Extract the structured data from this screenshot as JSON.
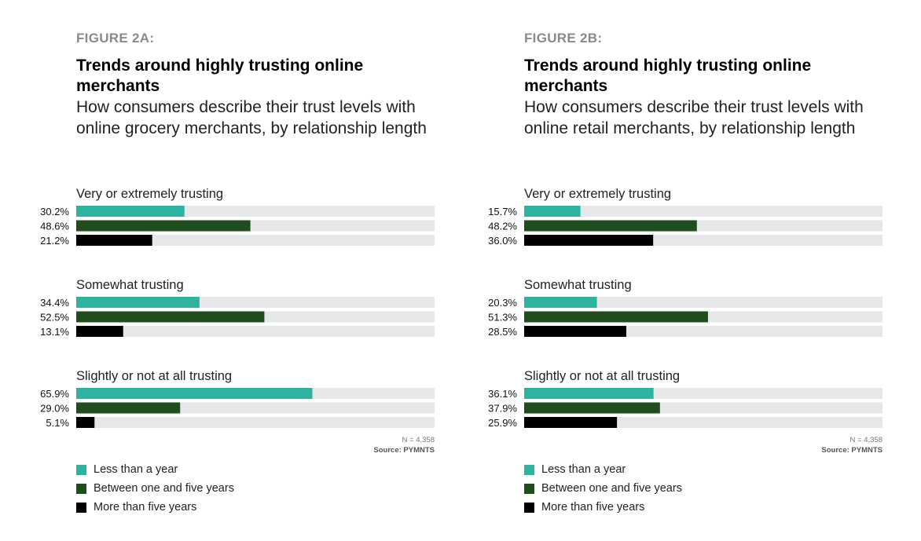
{
  "colors": {
    "less_than_a_year": "#2db3a0",
    "one_to_five_years": "#1f4d1c",
    "more_than_five_years": "#000000",
    "track": "#e6e7e8"
  },
  "legend": [
    {
      "key": "less_than_a_year",
      "label": "Less than a year"
    },
    {
      "key": "one_to_five_years",
      "label": "Between one and five years"
    },
    {
      "key": "more_than_five_years",
      "label": "More than five years"
    }
  ],
  "chart_data": [
    {
      "type": "bar",
      "figure_label": "FIGURE 2A:",
      "title": "Trends around highly trusting online merchants",
      "subtitle": "How consumers describe their trust levels with online grocery merchants, by relationship length",
      "categories": [
        "Very or extremely trusting",
        "Somewhat trusting",
        "Slightly or not at all trusting"
      ],
      "series": [
        {
          "name": "Less than a year",
          "values": [
            30.2,
            34.4,
            65.9
          ]
        },
        {
          "name": "Between one and five years",
          "values": [
            48.6,
            52.5,
            29.0
          ]
        },
        {
          "name": "More than five years",
          "values": [
            21.2,
            13.1,
            5.1
          ]
        }
      ],
      "xlim": [
        0,
        100
      ],
      "note": "N = 4,358",
      "source": "Source: PYMNTS"
    },
    {
      "type": "bar",
      "figure_label": "FIGURE 2B:",
      "title": "Trends around highly trusting online merchants",
      "subtitle": "How consumers describe their trust levels with online retail merchants, by relationship length",
      "categories": [
        "Very or extremely trusting",
        "Somewhat trusting",
        "Slightly or not at all trusting"
      ],
      "series": [
        {
          "name": "Less than a year",
          "values": [
            15.7,
            20.3,
            36.1
          ]
        },
        {
          "name": "Between one and five years",
          "values": [
            48.2,
            51.3,
            37.9
          ]
        },
        {
          "name": "More than five years",
          "values": [
            36.0,
            28.5,
            25.9
          ]
        }
      ],
      "xlim": [
        0,
        100
      ],
      "note": "N = 4,358",
      "source": "Source: PYMNTS"
    }
  ]
}
